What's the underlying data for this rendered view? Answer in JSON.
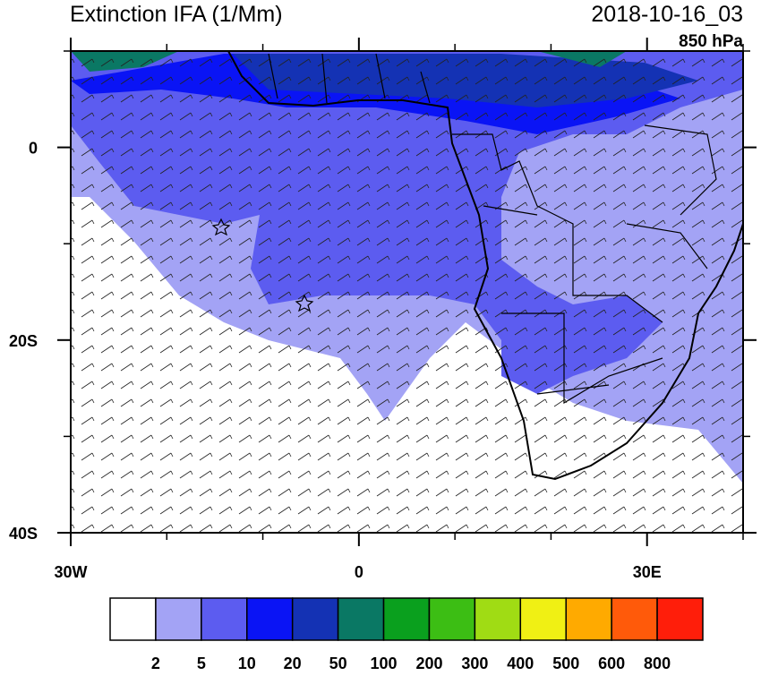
{
  "map": {
    "title": "Extinction IFA (1/Mm)",
    "valid_time": "2018-10-16_03",
    "level": "850 hPa",
    "lon_range": [
      -30,
      40
    ],
    "lat_range": [
      -40,
      10
    ],
    "lon_ticks": [
      {
        "value": -30,
        "label": "30W"
      },
      0,
      {
        "value": 30,
        "label": "30E"
      }
    ],
    "lat_ticks": [
      0,
      {
        "value": -20,
        "label": "20S"
      },
      {
        "value": -40,
        "label": "40S"
      }
    ],
    "minor_lon_ticks": [
      -20,
      -10,
      10,
      20,
      40
    ],
    "minor_lat_ticks": [
      10,
      -10,
      -30
    ],
    "colorbar": {
      "levels": [
        2,
        5,
        10,
        20,
        50,
        100,
        200,
        300,
        400,
        500,
        600,
        800
      ],
      "colors": [
        "#ffffff",
        "#a3a3f5",
        "#5c5cf0",
        "#0a14f5",
        "#1432b4",
        "#0a7864",
        "#0aa01e",
        "#3cbe14",
        "#a0dc14",
        "#f0f014",
        "#ffaa00",
        "#ff5a0a",
        "#ff1e0a"
      ]
    }
  }
}
